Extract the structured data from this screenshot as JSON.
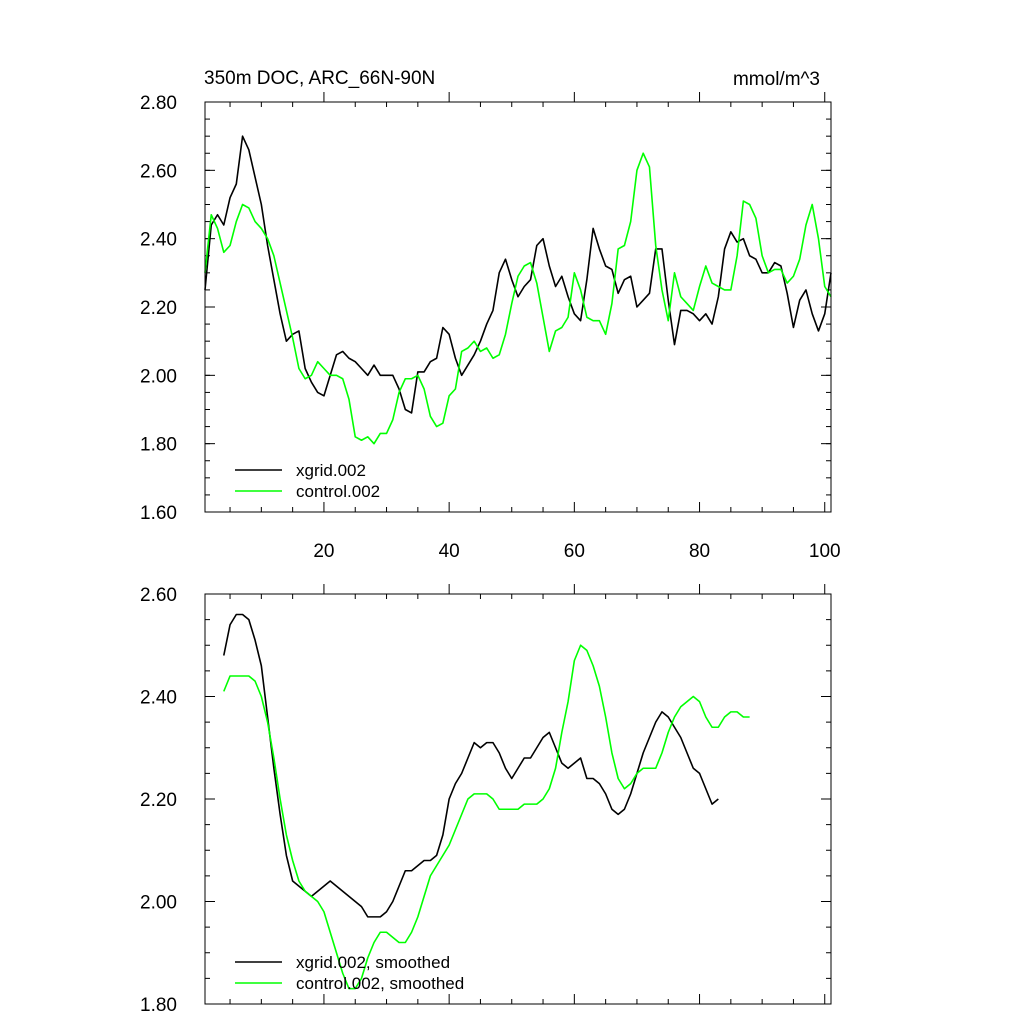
{
  "chart_data": [
    {
      "type": "line",
      "title": "350m DOC, ARC_66N-90N",
      "units": "mmol/m^3",
      "xlabel": "",
      "ylabel": "",
      "xlim": [
        1,
        101
      ],
      "ylim": [
        1.6,
        2.8
      ],
      "xticks": [
        20,
        40,
        60,
        80,
        100
      ],
      "yticks": [
        1.6,
        1.8,
        2.0,
        2.2,
        2.4,
        2.6,
        2.8
      ],
      "ytick_labels": [
        "1.60",
        "1.80",
        "2.00",
        "2.20",
        "2.40",
        "2.60",
        "2.80"
      ],
      "legend_position": "bottom-left",
      "series": [
        {
          "name": "xgrid.002",
          "color": "#000000",
          "values": [
            2.25,
            2.44,
            2.47,
            2.44,
            2.52,
            2.56,
            2.7,
            2.66,
            2.58,
            2.5,
            2.38,
            2.28,
            2.18,
            2.1,
            2.12,
            2.13,
            2.02,
            1.98,
            1.95,
            1.94,
            2.0,
            2.06,
            2.07,
            2.05,
            2.04,
            2.02,
            2.0,
            2.03,
            2.0,
            2.0,
            2.0,
            1.96,
            1.9,
            1.89,
            2.01,
            2.01,
            2.04,
            2.05,
            2.14,
            2.12,
            2.05,
            2.0,
            2.03,
            2.06,
            2.1,
            2.15,
            2.19,
            2.3,
            2.34,
            2.28,
            2.23,
            2.26,
            2.28,
            2.38,
            2.4,
            2.32,
            2.26,
            2.29,
            2.23,
            2.18,
            2.16,
            2.28,
            2.43,
            2.37,
            2.32,
            2.31,
            2.24,
            2.28,
            2.29,
            2.2,
            2.22,
            2.24,
            2.37,
            2.37,
            2.22,
            2.09,
            2.19,
            2.19,
            2.18,
            2.16,
            2.18,
            2.15,
            2.23,
            2.37,
            2.42,
            2.39,
            2.4,
            2.35,
            2.34,
            2.3,
            2.3,
            2.33,
            2.32,
            2.24,
            2.14,
            2.22,
            2.25,
            2.18,
            2.13,
            2.18,
            2.3
          ]
        },
        {
          "name": "control.002",
          "color": "#00ff00",
          "values": [
            2.3,
            2.47,
            2.43,
            2.36,
            2.38,
            2.45,
            2.5,
            2.49,
            2.45,
            2.43,
            2.4,
            2.35,
            2.27,
            2.19,
            2.11,
            2.02,
            1.99,
            2.0,
            2.04,
            2.02,
            2.0,
            2.0,
            1.99,
            1.93,
            1.82,
            1.81,
            1.82,
            1.8,
            1.83,
            1.83,
            1.87,
            1.95,
            1.99,
            1.99,
            2.0,
            1.96,
            1.88,
            1.85,
            1.86,
            1.94,
            1.96,
            2.07,
            2.08,
            2.1,
            2.07,
            2.08,
            2.05,
            2.06,
            2.12,
            2.21,
            2.29,
            2.32,
            2.33,
            2.27,
            2.17,
            2.07,
            2.13,
            2.14,
            2.17,
            2.3,
            2.25,
            2.17,
            2.16,
            2.16,
            2.12,
            2.21,
            2.37,
            2.38,
            2.45,
            2.6,
            2.65,
            2.61,
            2.38,
            2.25,
            2.16,
            2.3,
            2.23,
            2.21,
            2.19,
            2.26,
            2.32,
            2.27,
            2.26,
            2.25,
            2.25,
            2.35,
            2.51,
            2.5,
            2.46,
            2.35,
            2.3,
            2.31,
            2.31,
            2.27,
            2.29,
            2.34,
            2.44,
            2.5,
            2.4,
            2.26,
            2.23
          ]
        }
      ]
    },
    {
      "type": "line",
      "title": "",
      "xlabel": "",
      "ylabel": "",
      "xlim": [
        1,
        101
      ],
      "ylim": [
        1.8,
        2.6
      ],
      "xticks": [
        20,
        40,
        60,
        80,
        100
      ],
      "yticks": [
        1.8,
        2.0,
        2.2,
        2.4,
        2.6
      ],
      "ytick_labels": [
        "1.80",
        "2.00",
        "2.20",
        "2.40",
        "2.60"
      ],
      "legend_position": "bottom-left",
      "series": [
        {
          "name": "xgrid.002, smoothed",
          "color": "#000000",
          "x_start": 4,
          "values": [
            2.48,
            2.54,
            2.56,
            2.56,
            2.55,
            2.51,
            2.46,
            2.36,
            2.26,
            2.17,
            2.09,
            2.04,
            2.03,
            2.02,
            2.01,
            2.02,
            2.03,
            2.04,
            2.03,
            2.02,
            2.01,
            2.0,
            1.99,
            1.97,
            1.97,
            1.97,
            1.98,
            2.0,
            2.03,
            2.06,
            2.06,
            2.07,
            2.08,
            2.08,
            2.09,
            2.13,
            2.2,
            2.23,
            2.25,
            2.28,
            2.31,
            2.3,
            2.31,
            2.31,
            2.29,
            2.26,
            2.24,
            2.26,
            2.28,
            2.28,
            2.3,
            2.32,
            2.33,
            2.3,
            2.27,
            2.26,
            2.27,
            2.28,
            2.24,
            2.24,
            2.23,
            2.21,
            2.18,
            2.17,
            2.18,
            2.21,
            2.25,
            2.29,
            2.32,
            2.35,
            2.37,
            2.36,
            2.34,
            2.32,
            2.29,
            2.26,
            2.25,
            2.22,
            2.19,
            2.2
          ]
        },
        {
          "name": "control.002, smoothed",
          "color": "#00ff00",
          "x_start": 4,
          "values": [
            2.41,
            2.44,
            2.44,
            2.44,
            2.44,
            2.43,
            2.4,
            2.35,
            2.28,
            2.2,
            2.13,
            2.08,
            2.04,
            2.02,
            2.01,
            2.0,
            1.98,
            1.94,
            1.9,
            1.86,
            1.83,
            1.83,
            1.85,
            1.89,
            1.92,
            1.94,
            1.94,
            1.93,
            1.92,
            1.92,
            1.94,
            1.97,
            2.01,
            2.05,
            2.07,
            2.09,
            2.11,
            2.14,
            2.17,
            2.2,
            2.21,
            2.21,
            2.21,
            2.2,
            2.18,
            2.18,
            2.18,
            2.18,
            2.19,
            2.19,
            2.19,
            2.2,
            2.22,
            2.26,
            2.33,
            2.39,
            2.47,
            2.5,
            2.49,
            2.46,
            2.42,
            2.36,
            2.29,
            2.24,
            2.22,
            2.23,
            2.25,
            2.26,
            2.26,
            2.26,
            2.29,
            2.33,
            2.36,
            2.38,
            2.39,
            2.4,
            2.39,
            2.36,
            2.34,
            2.34,
            2.36,
            2.37,
            2.37,
            2.36,
            2.36
          ]
        }
      ]
    }
  ]
}
